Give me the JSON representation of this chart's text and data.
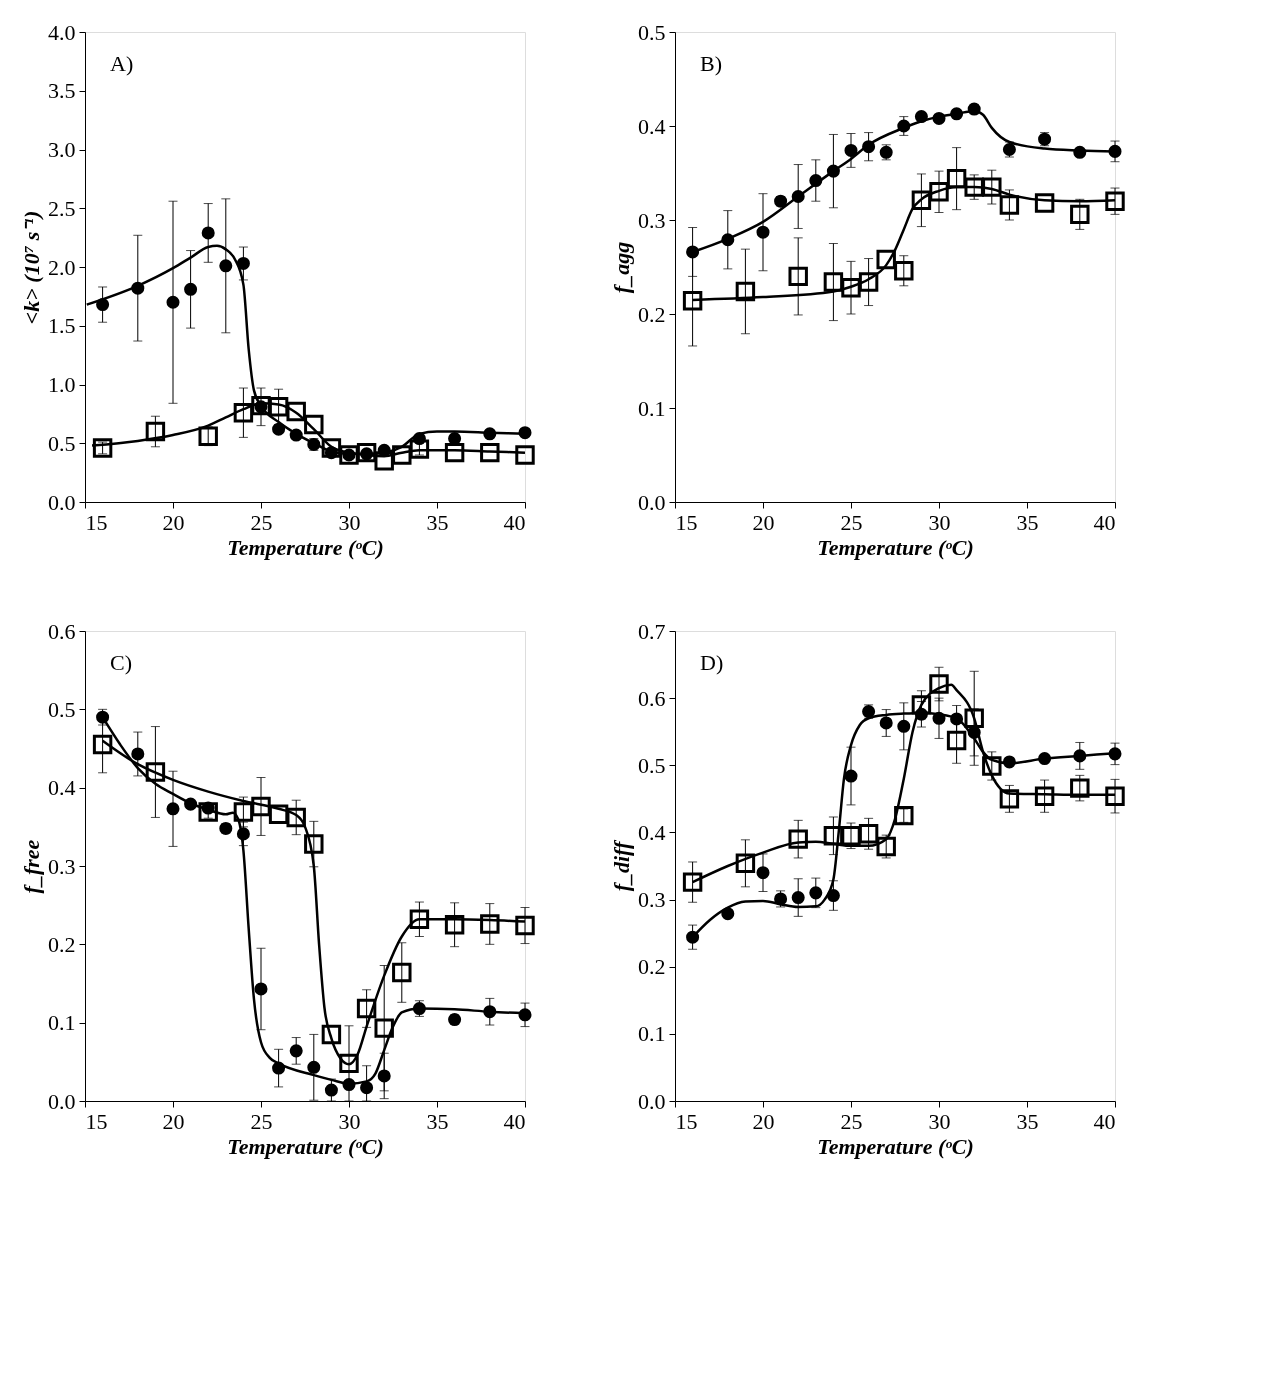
{
  "chart_data": [
    {
      "type": "scatter",
      "annotations": [
        "A)"
      ],
      "xlabel": "Temperature (ᵒC)",
      "ylabel": "<k> (10⁷ s⁻¹)",
      "xlim": [
        15,
        40
      ],
      "xticks": [
        15,
        20,
        25,
        30,
        35,
        40
      ],
      "ylim": [
        0,
        4
      ],
      "yticks": [
        {
          "value": 0,
          "label": "0.0"
        },
        0.5,
        {
          "value": 1,
          "label": "1.0"
        },
        1.5,
        {
          "value": 2,
          "label": "2.0"
        },
        2.5,
        {
          "value": 3,
          "label": "3.0"
        },
        3.5,
        {
          "value": 4,
          "label": "4.0"
        }
      ],
      "series": [
        {
          "type": "scatter",
          "marker": "circle",
          "color": "#000000",
          "x": [
            16,
            18,
            20,
            21,
            22,
            23,
            24,
            25,
            26,
            27,
            28,
            29,
            30,
            31,
            32,
            34,
            36,
            38,
            40
          ],
          "values": [
            1.68,
            1.82,
            1.7,
            1.81,
            2.29,
            2.01,
            2.03,
            0.81,
            0.62,
            0.57,
            0.49,
            0.42,
            0.4,
            0.41,
            0.44,
            0.54,
            0.54,
            0.58,
            0.59
          ],
          "errors": [
            0.15,
            0.45,
            0.86,
            0.33,
            0.25,
            0.57,
            0.14,
            0.16,
            null,
            null,
            0.05,
            null,
            null,
            null,
            null,
            null,
            null,
            null,
            null
          ]
        },
        {
          "type": "scatter",
          "marker": "square",
          "color": "#000000",
          "x": [
            16,
            19,
            22,
            24,
            25,
            26,
            27,
            28,
            29,
            30,
            31,
            32,
            33,
            34,
            36,
            38,
            40
          ],
          "values": [
            0.46,
            0.6,
            0.56,
            0.76,
            0.82,
            0.81,
            0.77,
            0.66,
            0.46,
            0.4,
            0.42,
            0.35,
            0.4,
            0.45,
            0.42,
            0.42,
            0.4
          ],
          "errors": [
            0.05,
            0.13,
            0.08,
            0.21,
            null,
            0.15,
            null,
            null,
            null,
            null,
            null,
            null,
            null,
            0.05,
            null,
            null,
            null
          ]
        },
        {
          "type": "line",
          "marker": "none",
          "color": "#000000",
          "x": [
            15.1,
            18,
            20,
            21,
            22,
            22.5,
            23,
            23.5,
            24,
            24.3,
            24.6,
            25,
            26,
            27,
            28,
            29,
            30,
            31,
            32,
            33,
            34,
            35,
            36,
            38,
            40
          ],
          "values": [
            1.68,
            1.84,
            1.99,
            2.08,
            2.17,
            2.18,
            2.15,
            2.07,
            1.85,
            1.3,
            0.95,
            0.82,
            0.68,
            0.58,
            0.5,
            0.43,
            0.41,
            0.41,
            0.42,
            0.47,
            0.58,
            0.6,
            0.6,
            0.59,
            0.58
          ]
        },
        {
          "type": "line",
          "marker": "none",
          "color": "#000000",
          "x": [
            15.4,
            18,
            20,
            22,
            23,
            24,
            25,
            26,
            27,
            28,
            29,
            30,
            31,
            32,
            33,
            34,
            35,
            36,
            38,
            40
          ],
          "values": [
            0.48,
            0.52,
            0.57,
            0.65,
            0.72,
            0.79,
            0.84,
            0.83,
            0.76,
            0.62,
            0.47,
            0.42,
            0.4,
            0.39,
            0.42,
            0.44,
            0.44,
            0.44,
            0.43,
            0.42
          ]
        }
      ]
    },
    {
      "type": "scatter",
      "annotations": [
        "B)"
      ],
      "xlabel": "Temperature (ᵒC)",
      "ylabel": "f_agg",
      "xlim": [
        15,
        40
      ],
      "xticks": [
        15,
        20,
        25,
        30,
        35,
        40
      ],
      "ylim": [
        0,
        0.5
      ],
      "yticks": [
        {
          "value": 0,
          "label": "0.0"
        },
        0.1,
        0.2,
        0.3,
        0.4,
        0.5
      ],
      "series": [
        {
          "type": "scatter",
          "marker": "circle",
          "color": "#000000",
          "x": [
            16,
            18,
            20,
            21,
            22,
            23,
            24,
            25,
            26,
            27,
            28,
            29,
            30,
            31,
            32,
            34,
            36,
            38,
            40
          ],
          "values": [
            0.266,
            0.279,
            0.287,
            0.32,
            0.325,
            0.342,
            0.352,
            0.374,
            0.378,
            0.372,
            0.4,
            0.41,
            0.408,
            0.413,
            0.418,
            0.375,
            0.386,
            0.372,
            0.373
          ],
          "errors": [
            0.026,
            0.031,
            0.041,
            0.005,
            0.034,
            0.022,
            0.039,
            0.018,
            0.015,
            0.008,
            0.01,
            null,
            null,
            null,
            0.005,
            0.008,
            0.007,
            null,
            0.011
          ]
        },
        {
          "type": "scatter",
          "marker": "square",
          "color": "#000000",
          "x": [
            16,
            19,
            22,
            24,
            25,
            26,
            27,
            28,
            29,
            30,
            31,
            32,
            33,
            34,
            36,
            38,
            40
          ],
          "values": [
            0.214,
            0.224,
            0.24,
            0.234,
            0.228,
            0.234,
            0.258,
            0.246,
            0.321,
            0.33,
            0.344,
            0.335,
            0.335,
            0.316,
            0.318,
            0.306,
            0.32
          ],
          "errors": [
            0.048,
            0.045,
            0.041,
            0.041,
            0.028,
            0.025,
            null,
            0.016,
            0.028,
            0.022,
            0.033,
            0.013,
            0.018,
            0.016,
            null,
            0.016,
            0.014
          ]
        },
        {
          "type": "line",
          "marker": "none",
          "color": "#000000",
          "x": [
            16,
            18,
            20,
            22,
            24,
            25,
            26,
            28,
            29,
            30,
            31,
            32,
            32.5,
            33,
            34,
            36,
            38,
            40
          ],
          "values": [
            0.266,
            0.28,
            0.298,
            0.325,
            0.352,
            0.365,
            0.38,
            0.398,
            0.405,
            0.41,
            0.413,
            0.416,
            0.412,
            0.398,
            0.383,
            0.376,
            0.374,
            0.373
          ]
        },
        {
          "type": "line",
          "marker": "none",
          "color": "#000000",
          "x": [
            16,
            20,
            24,
            25,
            26,
            27,
            27.5,
            28,
            28.5,
            29,
            30,
            31,
            32,
            33,
            34,
            36,
            38,
            40
          ],
          "values": [
            0.215,
            0.218,
            0.224,
            0.229,
            0.237,
            0.252,
            0.268,
            0.29,
            0.312,
            0.322,
            0.331,
            0.335,
            0.335,
            0.333,
            0.327,
            0.321,
            0.32,
            0.321
          ]
        }
      ]
    },
    {
      "type": "scatter",
      "annotations": [
        "C)"
      ],
      "xlabel": "Temperature (ᵒC)",
      "ylabel": "f_free",
      "xlim": [
        15,
        40
      ],
      "xticks": [
        15,
        20,
        25,
        30,
        35,
        40
      ],
      "ylim": [
        0,
        0.6
      ],
      "yticks": [
        {
          "value": 0,
          "label": "0.0"
        },
        0.1,
        0.2,
        0.3,
        0.4,
        0.5,
        0.6
      ],
      "series": [
        {
          "type": "scatter",
          "marker": "circle",
          "color": "#000000",
          "x": [
            16,
            18,
            20,
            21,
            22,
            23,
            24,
            25,
            26,
            27,
            28,
            29,
            30,
            31,
            32,
            34,
            36,
            38,
            40
          ],
          "values": [
            0.49,
            0.443,
            0.373,
            0.379,
            0.374,
            0.348,
            0.341,
            0.143,
            0.042,
            0.064,
            0.043,
            0.014,
            0.021,
            0.017,
            0.032,
            0.118,
            0.104,
            0.114,
            0.11
          ],
          "errors": [
            0.01,
            0.028,
            0.048,
            null,
            null,
            0.006,
            0.015,
            0.052,
            0.024,
            0.017,
            0.042,
            0.014,
            null,
            [
              0,
              0.045
            ],
            0.029,
            0.01,
            0.006,
            0.017,
            0.015
          ]
        },
        {
          "type": "scatter",
          "marker": "square",
          "color": "#000000",
          "x": [
            16,
            19,
            22,
            24,
            25,
            26,
            27,
            28,
            29,
            30,
            31,
            32,
            33,
            34,
            36,
            38,
            40
          ],
          "values": [
            0.455,
            0.42,
            0.369,
            0.369,
            0.376,
            0.366,
            0.362,
            0.328,
            0.085,
            0.048,
            0.118,
            0.093,
            0.164,
            0.232,
            0.225,
            0.226,
            0.224
          ],
          "errors": [
            0.036,
            0.058,
            0.008,
            0.019,
            0.037,
            null,
            0.022,
            0.029,
            null,
            0.048,
            0.024,
            0.08,
            0.038,
            0.022,
            0.028,
            0.026,
            0.023
          ]
        },
        {
          "type": "line",
          "marker": "none",
          "color": "#000000",
          "x": [
            16,
            17,
            18,
            19,
            20,
            21,
            22,
            23,
            23.4,
            23.7,
            24,
            24.3,
            24.6,
            25,
            25.5,
            26,
            28,
            29,
            30,
            31,
            31.5,
            32,
            32.5,
            33,
            34,
            36,
            38,
            40
          ],
          "values": [
            0.49,
            0.455,
            0.425,
            0.405,
            0.392,
            0.38,
            0.372,
            0.366,
            0.368,
            0.36,
            0.32,
            0.22,
            0.13,
            0.075,
            0.055,
            0.048,
            0.033,
            0.027,
            0.022,
            0.025,
            0.035,
            0.065,
            0.095,
            0.113,
            0.118,
            0.117,
            0.114,
            0.112
          ]
        },
        {
          "type": "line",
          "marker": "none",
          "color": "#000000",
          "x": [
            16,
            18,
            20,
            22,
            24,
            26,
            27,
            27.5,
            28,
            28.3,
            28.6,
            29,
            29.5,
            30,
            30.5,
            31,
            32,
            33,
            34,
            36,
            38,
            40
          ],
          "values": [
            0.46,
            0.43,
            0.41,
            0.395,
            0.383,
            0.373,
            0.365,
            0.35,
            0.3,
            0.2,
            0.12,
            0.08,
            0.055,
            0.047,
            0.06,
            0.095,
            0.16,
            0.21,
            0.232,
            0.232,
            0.231,
            0.229
          ]
        }
      ]
    },
    {
      "type": "scatter",
      "annotations": [
        "D)"
      ],
      "xlabel": "Temperature (ᵒC)",
      "ylabel": "f_diff",
      "xlim": [
        15,
        40
      ],
      "xticks": [
        15,
        20,
        25,
        30,
        35,
        40
      ],
      "ylim": [
        0,
        0.7
      ],
      "yticks": [
        {
          "value": 0,
          "label": "0.0"
        },
        0.1,
        0.2,
        0.3,
        0.4,
        0.5,
        0.6,
        0.7
      ],
      "series": [
        {
          "type": "scatter",
          "marker": "circle",
          "color": "#000000",
          "x": [
            16,
            18,
            20,
            21,
            22,
            23,
            24,
            25,
            26,
            27,
            28,
            29,
            30,
            31,
            32,
            34,
            36,
            38,
            40
          ],
          "values": [
            0.244,
            0.279,
            0.34,
            0.301,
            0.303,
            0.31,
            0.306,
            0.484,
            0.58,
            0.563,
            0.558,
            0.576,
            0.57,
            0.569,
            0.549,
            0.505,
            0.51,
            0.514,
            0.517
          ],
          "errors": [
            0.018,
            null,
            0.028,
            0.012,
            0.028,
            0.022,
            0.022,
            0.043,
            0.01,
            0.02,
            0.035,
            0.019,
            0.03,
            0.02,
            0.035,
            null,
            null,
            0.02,
            0.016
          ]
        },
        {
          "type": "scatter",
          "marker": "square",
          "color": "#000000",
          "x": [
            16,
            19,
            22,
            24,
            25,
            26,
            27,
            28,
            29,
            30,
            31,
            32,
            33,
            34,
            36,
            38,
            40
          ],
          "values": [
            0.326,
            0.354,
            0.39,
            0.395,
            0.395,
            0.398,
            0.379,
            0.425,
            0.59,
            0.621,
            0.537,
            0.57,
            0.499,
            0.45,
            0.454,
            0.466,
            0.454
          ],
          "errors": [
            0.03,
            0.035,
            0.028,
            0.028,
            0.019,
            0.023,
            0.017,
            0.01,
            0.021,
            0.025,
            0.034,
            0.07,
            0.021,
            0.02,
            0.024,
            0.019,
            0.025
          ]
        },
        {
          "type": "line",
          "marker": "none",
          "color": "#000000",
          "x": [
            16,
            17,
            18,
            19,
            20,
            21,
            22,
            23,
            23.5,
            24,
            24.3,
            24.6,
            25,
            25.5,
            26,
            27,
            28,
            29,
            30,
            31,
            32,
            32.5,
            33,
            34,
            36,
            38,
            40
          ],
          "values": [
            0.244,
            0.27,
            0.288,
            0.297,
            0.298,
            0.293,
            0.289,
            0.29,
            0.3,
            0.33,
            0.4,
            0.48,
            0.53,
            0.56,
            0.57,
            0.575,
            0.577,
            0.578,
            0.576,
            0.57,
            0.54,
            0.52,
            0.508,
            0.503,
            0.51,
            0.514,
            0.518
          ]
        },
        {
          "type": "line",
          "marker": "none",
          "color": "#000000",
          "x": [
            16,
            18,
            20,
            22,
            23,
            24,
            25,
            26,
            27,
            27.5,
            28,
            28.5,
            29,
            30,
            30.7,
            31,
            32,
            32.5,
            33,
            33.5,
            34,
            36,
            38,
            40
          ],
          "values": [
            0.326,
            0.35,
            0.37,
            0.385,
            0.386,
            0.383,
            0.38,
            0.38,
            0.39,
            0.42,
            0.48,
            0.55,
            0.59,
            0.615,
            0.62,
            0.612,
            0.57,
            0.52,
            0.485,
            0.465,
            0.458,
            0.457,
            0.456,
            0.456
          ]
        }
      ]
    }
  ]
}
